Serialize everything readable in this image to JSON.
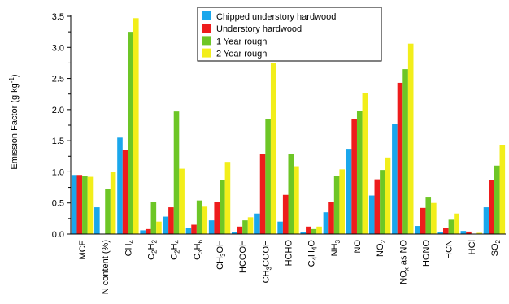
{
  "chart_data": {
    "type": "bar",
    "ylabel": "Emission Factor (g kg",
    "ylabel_sup": "-1",
    "ylabel_close": ")",
    "ylim": [
      0,
      3.5
    ],
    "yticks": [
      "0.0",
      "0.5",
      "1.0",
      "1.5",
      "2.0",
      "2.5",
      "3.0",
      "3.5"
    ],
    "grid": false,
    "legend_position": "top-center",
    "categories": [
      {
        "parts": [
          {
            "t": "MCE",
            "sub": false
          }
        ]
      },
      {
        "parts": [
          {
            "t": "N content (%)",
            "sub": false
          }
        ]
      },
      {
        "parts": [
          {
            "t": "CH",
            "sub": false
          },
          {
            "t": "4",
            "sub": true
          }
        ]
      },
      {
        "parts": [
          {
            "t": "C",
            "sub": false
          },
          {
            "t": "2",
            "sub": true
          },
          {
            "t": "H",
            "sub": false
          },
          {
            "t": "2",
            "sub": true
          }
        ]
      },
      {
        "parts": [
          {
            "t": "C",
            "sub": false
          },
          {
            "t": "2",
            "sub": true
          },
          {
            "t": "H",
            "sub": false
          },
          {
            "t": "4",
            "sub": true
          }
        ]
      },
      {
        "parts": [
          {
            "t": "C",
            "sub": false
          },
          {
            "t": "3",
            "sub": true
          },
          {
            "t": "H",
            "sub": false
          },
          {
            "t": "6",
            "sub": true
          }
        ]
      },
      {
        "parts": [
          {
            "t": "CH",
            "sub": false
          },
          {
            "t": "3",
            "sub": true
          },
          {
            "t": "OH",
            "sub": false
          }
        ]
      },
      {
        "parts": [
          {
            "t": "HCOOH",
            "sub": false
          }
        ]
      },
      {
        "parts": [
          {
            "t": "CH",
            "sub": false
          },
          {
            "t": "3",
            "sub": true
          },
          {
            "t": "COOH",
            "sub": false
          }
        ]
      },
      {
        "parts": [
          {
            "t": "HCHO",
            "sub": false
          }
        ]
      },
      {
        "parts": [
          {
            "t": "C",
            "sub": false
          },
          {
            "t": "4",
            "sub": true
          },
          {
            "t": "H",
            "sub": false
          },
          {
            "t": "4",
            "sub": true
          },
          {
            "t": "O",
            "sub": false
          }
        ]
      },
      {
        "parts": [
          {
            "t": "NH",
            "sub": false
          },
          {
            "t": "3",
            "sub": true
          }
        ]
      },
      {
        "parts": [
          {
            "t": "NO",
            "sub": false
          }
        ]
      },
      {
        "parts": [
          {
            "t": "NO",
            "sub": false
          },
          {
            "t": "2",
            "sub": true
          }
        ]
      },
      {
        "parts": [
          {
            "t": "NO",
            "sub": false
          },
          {
            "t": "x",
            "sub": true
          },
          {
            "t": " as NO",
            "sub": false
          }
        ]
      },
      {
        "parts": [
          {
            "t": "HONO",
            "sub": false
          }
        ]
      },
      {
        "parts": [
          {
            "t": "HCN",
            "sub": false
          }
        ]
      },
      {
        "parts": [
          {
            "t": "HCl",
            "sub": false
          }
        ]
      },
      {
        "parts": [
          {
            "t": "SO",
            "sub": false
          },
          {
            "t": "2",
            "sub": true
          }
        ]
      }
    ],
    "series": [
      {
        "name": "Chipped understory hardwood",
        "color": "#1aa7ec",
        "values": [
          0.95,
          0.43,
          1.55,
          0.06,
          0.28,
          0.1,
          0.22,
          0.03,
          0.33,
          0.2,
          0.03,
          0.35,
          1.37,
          0.62,
          1.77,
          0.13,
          0.03,
          0.05,
          0.43
        ]
      },
      {
        "name": "Understory hardwood",
        "color": "#ee1c1c",
        "values": [
          0.95,
          0.0,
          1.35,
          0.08,
          0.43,
          0.15,
          0.51,
          0.12,
          1.28,
          0.63,
          0.12,
          0.52,
          1.85,
          0.88,
          2.43,
          0.42,
          0.1,
          0.04,
          0.87
        ]
      },
      {
        "name": "1 Year rough",
        "color": "#6dc626",
        "values": [
          0.93,
          0.72,
          3.25,
          0.52,
          1.97,
          0.54,
          0.87,
          0.22,
          1.85,
          1.28,
          0.08,
          0.94,
          1.98,
          1.03,
          2.65,
          0.6,
          0.23,
          0.0,
          1.1
        ]
      },
      {
        "name": "2 Year rough",
        "color": "#f2ee1a",
        "values": [
          0.92,
          1.0,
          3.47,
          0.2,
          1.05,
          0.44,
          1.16,
          0.27,
          2.75,
          1.09,
          0.12,
          1.04,
          2.26,
          1.23,
          3.06,
          0.5,
          0.33,
          0.02,
          1.43
        ]
      }
    ]
  }
}
